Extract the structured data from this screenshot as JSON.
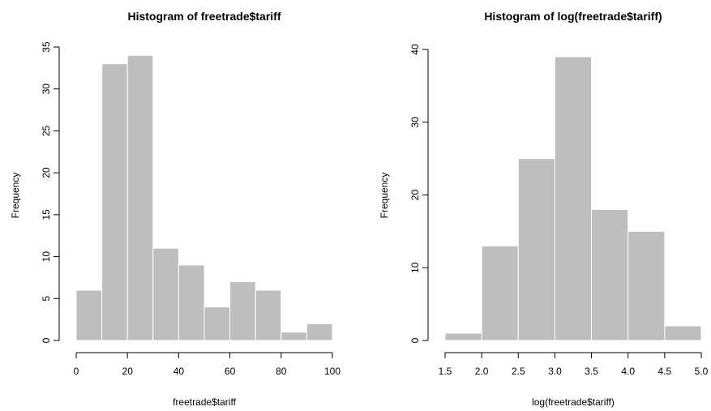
{
  "chart_data": [
    {
      "type": "bar",
      "title": "Histogram of freetrade$tariff",
      "xlabel": "freetrade$tariff",
      "ylabel": "Frequency",
      "bins": [
        [
          0,
          10
        ],
        [
          10,
          20
        ],
        [
          20,
          30
        ],
        [
          30,
          40
        ],
        [
          40,
          50
        ],
        [
          50,
          60
        ],
        [
          60,
          70
        ],
        [
          70,
          80
        ],
        [
          80,
          90
        ],
        [
          90,
          100
        ]
      ],
      "values": [
        6,
        33,
        34,
        11,
        9,
        4,
        7,
        6,
        1,
        2
      ],
      "xlim": [
        0,
        100
      ],
      "ylim": [
        0,
        35
      ],
      "xticks": [
        0,
        20,
        40,
        60,
        80,
        100
      ],
      "xtick_labels": [
        "0",
        "20",
        "40",
        "60",
        "80",
        "100"
      ],
      "yticks": [
        0,
        5,
        10,
        15,
        20,
        25,
        30,
        35
      ],
      "ytick_labels": [
        "0",
        "5",
        "10",
        "15",
        "20",
        "25",
        "30",
        "35"
      ],
      "bar_color": "#bebebe",
      "edge_color": "#ffffff",
      "grid": false
    },
    {
      "type": "bar",
      "title": "Histogram of log(freetrade$tariff)",
      "xlabel": "log(freetrade$tariff)",
      "ylabel": "Frequency",
      "bins": [
        [
          1.5,
          2.0
        ],
        [
          2.0,
          2.5
        ],
        [
          2.5,
          3.0
        ],
        [
          3.0,
          3.5
        ],
        [
          3.5,
          4.0
        ],
        [
          4.0,
          4.5
        ],
        [
          4.5,
          5.0
        ]
      ],
      "values": [
        1,
        13,
        25,
        39,
        18,
        15,
        2
      ],
      "xlim": [
        1.5,
        5.0
      ],
      "ylim": [
        0,
        40
      ],
      "xticks": [
        1.5,
        2.0,
        2.5,
        3.0,
        3.5,
        4.0,
        4.5,
        5.0
      ],
      "xtick_labels": [
        "1.5",
        "2.0",
        "2.5",
        "3.0",
        "3.5",
        "4.0",
        "4.5",
        "5.0"
      ],
      "yticks": [
        0,
        10,
        20,
        30,
        40
      ],
      "ytick_labels": [
        "0",
        "10",
        "20",
        "30",
        "40"
      ],
      "bar_color": "#bebebe",
      "edge_color": "#ffffff",
      "grid": false
    }
  ]
}
